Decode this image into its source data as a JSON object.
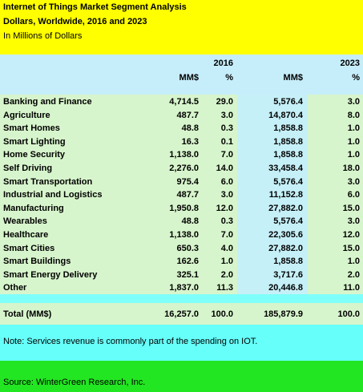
{
  "header": {
    "title": "Internet of Things Market Segment Analysis",
    "subtitle": "Dollars, Worldwide, 2016 and 2023",
    "units": "In Millions of Dollars"
  },
  "table": {
    "year_headers": [
      "2016",
      "2023"
    ],
    "columns": [
      "MM$",
      "%",
      "MM$",
      "%"
    ],
    "rows": [
      [
        "Banking and Finance",
        "4,714.5",
        "29.0",
        "5,576.4",
        "3.0"
      ],
      [
        "Agriculture",
        "487.7",
        "3.0",
        "14,870.4",
        "8.0"
      ],
      [
        "Smart Homes",
        "48.8",
        "0.3",
        "1,858.8",
        "1.0"
      ],
      [
        "Smart Lighting",
        "16.3",
        "0.1",
        "1,858.8",
        "1.0"
      ],
      [
        "Home Security",
        "1,138.0",
        "7.0",
        "1,858.8",
        "1.0"
      ],
      [
        "Self Driving",
        "2,276.0",
        "14.0",
        "33,458.4",
        "18.0"
      ],
      [
        "Smart Transportation",
        "975.4",
        "6.0",
        "5,576.4",
        "3.0"
      ],
      [
        "Industrial and Logistics",
        "487.7",
        "3.0",
        "11,152.8",
        "6.0"
      ],
      [
        "Manufacturing",
        "1,950.8",
        "12.0",
        "27,882.0",
        "15.0"
      ],
      [
        "Wearables",
        "48.8",
        "0.3",
        "5,576.4",
        "3.0"
      ],
      [
        "Healthcare",
        "1,138.0",
        "7.0",
        "22,305.6",
        "12.0"
      ],
      [
        "Smart Cities",
        "650.3",
        "4.0",
        "27,882.0",
        "15.0"
      ],
      [
        "Smart Buildings",
        "162.6",
        "1.0",
        "1,858.8",
        "1.0"
      ],
      [
        "Smart Energy Delivery",
        "325.1",
        "2.0",
        "3,717.6",
        "2.0"
      ],
      [
        "Other",
        "1,837.0",
        "11.3",
        "20,446.8",
        "11.0"
      ]
    ],
    "total": [
      "Total (MM$)",
      "16,257.0",
      "100.0",
      "185,879.9",
      "100.0"
    ]
  },
  "note": "Note:  Services revenue is commonly part of the spending on IOT.",
  "source": "Source:  WinterGreen Research, Inc."
}
